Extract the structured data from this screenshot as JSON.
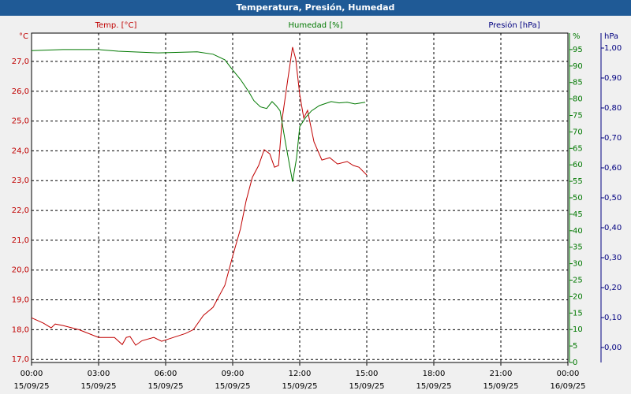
{
  "chart_data": {
    "type": "line",
    "title": "Temperatura, Presión, Humedad",
    "y_unit": "°C",
    "y2_unit": "%",
    "y3_unit": "hPa",
    "xlim": [
      0,
      24
    ],
    "xticks": [
      {
        "value": 0,
        "label": "00:00",
        "date": "15/09/25"
      },
      {
        "value": 3,
        "label": "03:00",
        "date": "15/09/25"
      },
      {
        "value": 6,
        "label": "06:00",
        "date": "15/09/25"
      },
      {
        "value": 9,
        "label": "09:00",
        "date": "15/09/25"
      },
      {
        "value": 12,
        "label": "12:00",
        "date": "15/09/25"
      },
      {
        "value": 15,
        "label": "15:00",
        "date": "15/09/25"
      },
      {
        "value": 18,
        "label": "18:00",
        "date": "15/09/25"
      },
      {
        "value": 21,
        "label": "21:00",
        "date": "15/09/25"
      },
      {
        "value": 24,
        "label": "00:00",
        "date": "16/09/25"
      }
    ],
    "ylim": [
      16.9,
      27.95
    ],
    "yticks": [
      {
        "value": 17,
        "label": "17,0"
      },
      {
        "value": 18,
        "label": "18,0"
      },
      {
        "value": 19,
        "label": "19,0"
      },
      {
        "value": 20,
        "label": "20,0"
      },
      {
        "value": 21,
        "label": "21,0"
      },
      {
        "value": 22,
        "label": "22,0"
      },
      {
        "value": 23,
        "label": "23,0"
      },
      {
        "value": 24,
        "label": "24,0"
      },
      {
        "value": 25,
        "label": "25,0"
      },
      {
        "value": 26,
        "label": "26,0"
      },
      {
        "value": 27,
        "label": "27,0"
      }
    ],
    "y2lim": [
      0,
      100
    ],
    "y2ticks": [
      0,
      5,
      10,
      15,
      20,
      25,
      30,
      35,
      40,
      45,
      50,
      55,
      60,
      65,
      70,
      75,
      80,
      85,
      90,
      95
    ],
    "y3lim": [
      -0.05,
      1.05
    ],
    "y3ticks": [
      {
        "value": 0,
        "label": "0,00"
      },
      {
        "value": 0.1,
        "label": "0,10"
      },
      {
        "value": 0.2,
        "label": "0,20"
      },
      {
        "value": 0.3,
        "label": "0,30"
      },
      {
        "value": 0.4,
        "label": "0,40"
      },
      {
        "value": 0.5,
        "label": "0,50"
      },
      {
        "value": 0.6,
        "label": "0,60"
      },
      {
        "value": 0.7,
        "label": "0,70"
      },
      {
        "value": 0.8,
        "label": "0,80"
      },
      {
        "value": 0.9,
        "label": "0,90"
      },
      {
        "value": 1.0,
        "label": "1,00"
      }
    ],
    "grid": true,
    "series": [
      {
        "name": "Temp. [°C]",
        "color": "#c00000",
        "axis": "y",
        "x": [
          0,
          0.53,
          0.88,
          1.06,
          1.41,
          2.12,
          3.0,
          3.71,
          4.06,
          4.24,
          4.41,
          4.66,
          4.94,
          5.47,
          5.82,
          6.35,
          6.88,
          7.24,
          7.69,
          8.12,
          8.65,
          9.0,
          9.35,
          9.6,
          9.88,
          10.16,
          10.41,
          10.66,
          10.87,
          11.05,
          11.22,
          11.47,
          11.68,
          11.82,
          12.0,
          12.18,
          12.35,
          12.64,
          12.99,
          13.34,
          13.69,
          14.12,
          14.4,
          14.65,
          15.0
        ],
        "values": [
          18.4,
          18.22,
          18.06,
          18.19,
          18.14,
          18.0,
          17.74,
          17.74,
          17.5,
          17.74,
          17.77,
          17.48,
          17.63,
          17.74,
          17.61,
          17.74,
          17.87,
          18.0,
          18.48,
          18.75,
          19.49,
          20.47,
          21.39,
          22.32,
          23.11,
          23.51,
          24.04,
          23.9,
          23.45,
          23.51,
          25.1,
          26.42,
          27.48,
          27.08,
          25.89,
          25.1,
          25.36,
          24.3,
          23.69,
          23.77,
          23.56,
          23.64,
          23.51,
          23.45,
          23.19
        ]
      },
      {
        "name": "Humedad [%]",
        "color": "#007800",
        "axis": "y2",
        "x": [
          0,
          1.41,
          3.0,
          3.88,
          5.65,
          7.41,
          8.12,
          8.65,
          9.0,
          9.35,
          9.71,
          9.95,
          10.24,
          10.52,
          10.76,
          10.94,
          11.12,
          11.36,
          11.68,
          11.86,
          12.0,
          12.28,
          12.53,
          12.88,
          13.41,
          13.76,
          14.12,
          14.47,
          14.93
        ],
        "values": [
          94.7,
          95.0,
          95.0,
          94.5,
          94.0,
          94.3,
          93.6,
          91.9,
          88.8,
          85.9,
          82.3,
          79.5,
          77.6,
          77.1,
          79.2,
          78.0,
          76.4,
          66.8,
          54.9,
          62.1,
          71.6,
          74.5,
          76.4,
          78.0,
          79.2,
          78.8,
          79.0,
          78.5,
          79.0
        ]
      },
      {
        "name": "Presión [hPa]",
        "color": "#000080",
        "axis": "y3",
        "x": [],
        "values": []
      }
    ]
  }
}
